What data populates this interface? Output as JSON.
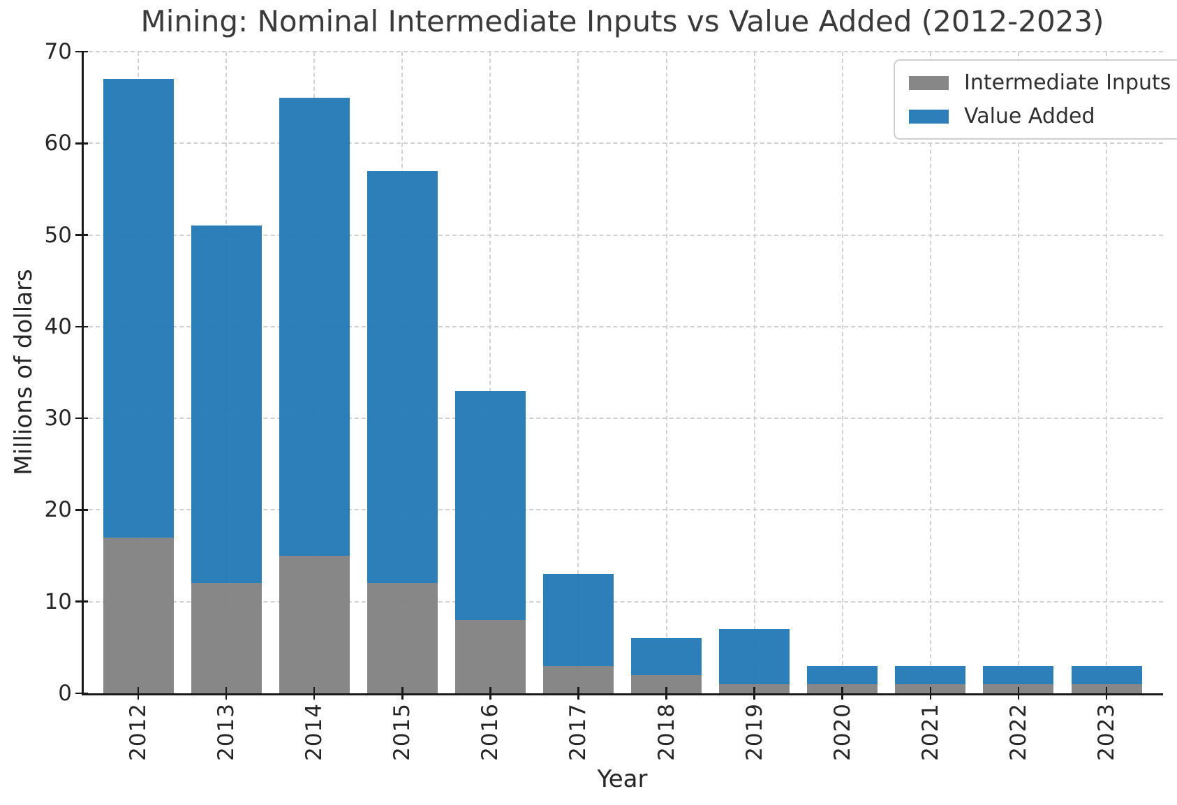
{
  "title": "Mining: Nominal Intermediate Inputs vs Value Added (2012-2023)",
  "chart_data": {
    "type": "bar",
    "stacked": true,
    "title": "Mining: Nominal Intermediate Inputs vs Value Added (2012-2023)",
    "xlabel": "Year",
    "ylabel": "Millions of dollars",
    "categories": [
      "2012",
      "2013",
      "2014",
      "2015",
      "2016",
      "2017",
      "2018",
      "2019",
      "2020",
      "2021",
      "2022",
      "2023"
    ],
    "series": [
      {
        "name": "Intermediate Inputs",
        "color": "#7f7f7f",
        "values": [
          17,
          12,
          15,
          12,
          8,
          3,
          2,
          1,
          1,
          1,
          1,
          1
        ]
      },
      {
        "name": "Value Added",
        "color": "#1f77b4",
        "values": [
          50,
          39,
          50,
          45,
          25,
          10,
          4,
          6,
          2,
          2,
          2,
          2
        ]
      }
    ],
    "stacked_totals": [
      67,
      51,
      65,
      57,
      33,
      13,
      6,
      7,
      3,
      3,
      3,
      3
    ],
    "ylim": [
      0,
      70
    ],
    "yticks": [
      0,
      10,
      20,
      30,
      40,
      50,
      60,
      70
    ],
    "grid": true,
    "grid_style": "dashed",
    "legend_position": "upper right",
    "bar_alpha": 0.94,
    "grid_color": "#d2d2d2",
    "text_color": "#262626",
    "title_color": "#3a3a3a"
  }
}
